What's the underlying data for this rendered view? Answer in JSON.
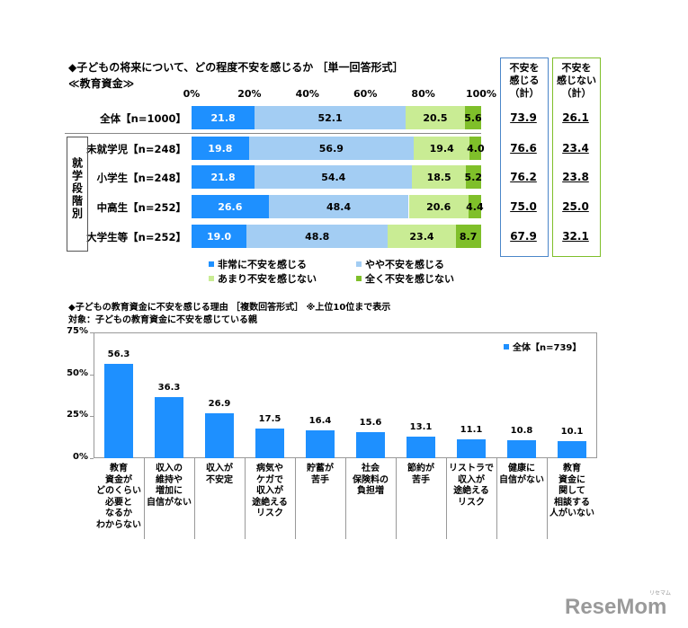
{
  "chart_data": [
    {
      "type": "bar",
      "orientation": "horizontal-stacked",
      "title": "◆子どもの将来について、どの程度不安を感じるか ［単一回答形式］",
      "subtitle": "≪教育資金≫",
      "x_ticks": [
        "0%",
        "20%",
        "40%",
        "60%",
        "80%",
        "100%"
      ],
      "xlim": [
        0,
        100
      ],
      "group_label": "就学段階別",
      "categories": [
        "全体【n=1000】",
        "未就学児【n=248】",
        "小学生【n=248】",
        "中高生【n=252】",
        "大学生等【n=252】"
      ],
      "series": [
        {
          "name": "非常に不安を感じる",
          "color": "#1e90ff",
          "values": [
            21.8,
            19.8,
            21.8,
            26.6,
            19.0
          ]
        },
        {
          "name": "やや不安を感じる",
          "color": "#a3cdf3",
          "values": [
            52.1,
            56.9,
            54.4,
            48.4,
            48.8
          ]
        },
        {
          "name": "あまり不安を感じない",
          "color": "#c9ec94",
          "values": [
            20.5,
            19.4,
            18.5,
            20.6,
            23.4
          ]
        },
        {
          "name": "全く不安を感じない",
          "color": "#7fbf2a",
          "values": [
            5.6,
            4.0,
            5.2,
            4.4,
            8.7
          ]
        }
      ],
      "summary": [
        {
          "header": [
            "不安を",
            "感じる",
            "（計）"
          ],
          "border_color": "#4b86c9",
          "values": [
            "73.9",
            "76.6",
            "76.2",
            "75.0",
            "67.9"
          ]
        },
        {
          "header": [
            "不安を",
            "感じない",
            "（計）"
          ],
          "border_color": "#7fbf2a",
          "values": [
            "26.1",
            "23.4",
            "23.8",
            "25.0",
            "32.1"
          ]
        }
      ],
      "legend_position": "bottom"
    },
    {
      "type": "bar",
      "title": "◆子どもの教育資金に不安を感じる理由 ［複数回答形式］ ※上位10位まで表示",
      "subtitle": "対象：子どもの教育資金に不安を感じている親",
      "ylim": [
        0,
        75
      ],
      "y_ticks": [
        "0%",
        "25%",
        "50%",
        "75%"
      ],
      "legend": "全体【n=739】",
      "legend_position": "top-right",
      "color": "#1e90ff",
      "categories": [
        [
          "教育",
          "資金が",
          "どのくらい",
          "必要と",
          "なるか",
          "わからない"
        ],
        [
          "収入の",
          "維持や",
          "増加に",
          "自信がない"
        ],
        [
          "収入が",
          "不安定"
        ],
        [
          "病気や",
          "ケガで",
          "収入が",
          "途絶える",
          "リスク"
        ],
        [
          "貯蓄が",
          "苦手"
        ],
        [
          "社会",
          "保険料の",
          "負担増"
        ],
        [
          "節約が",
          "苦手"
        ],
        [
          "リストラで",
          "収入が",
          "途絶える",
          "リスク"
        ],
        [
          "健康に",
          "自信がない"
        ],
        [
          "教育",
          "資金に",
          "関して",
          "相談する",
          "人がいない"
        ]
      ],
      "values": [
        56.3,
        36.3,
        26.9,
        17.5,
        16.4,
        15.6,
        13.1,
        11.1,
        10.8,
        10.1
      ],
      "value_labels": [
        "56.3",
        "36.3",
        "26.9",
        "17.5",
        "16.4",
        "15.6",
        "13.1",
        "11.1",
        "10.8",
        "10.1"
      ]
    }
  ],
  "logo": {
    "text": "ReseMom",
    "small_text": "リセマム"
  }
}
